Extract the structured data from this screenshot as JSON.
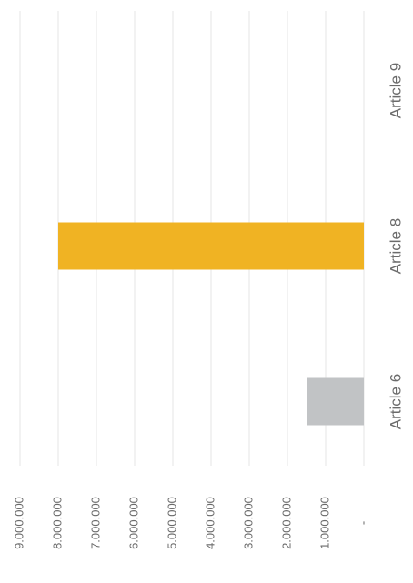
{
  "chart_data": {
    "type": "bar",
    "orientation": "horizontal",
    "categories": [
      "Article 6",
      "Article 8",
      "Article 9"
    ],
    "values": [
      1500000,
      8000000,
      0
    ],
    "colors": [
      "#c1c3c5",
      "#f0b323",
      "#c1c3c5"
    ],
    "xlim": [
      0,
      9000000
    ],
    "xticks": [
      {
        "value": 0,
        "label": "-"
      },
      {
        "value": 1000000,
        "label": "1.000.000"
      },
      {
        "value": 2000000,
        "label": "2.000.000"
      },
      {
        "value": 3000000,
        "label": "3.000.000"
      },
      {
        "value": 4000000,
        "label": "4.000.000"
      },
      {
        "value": 5000000,
        "label": "5.000.000"
      },
      {
        "value": 6000000,
        "label": "6.000.000"
      },
      {
        "value": 7000000,
        "label": "7.000.000"
      },
      {
        "value": 8000000,
        "label": "8.000.000"
      },
      {
        "value": 9000000,
        "label": "9.000.000"
      }
    ],
    "grid": true
  }
}
